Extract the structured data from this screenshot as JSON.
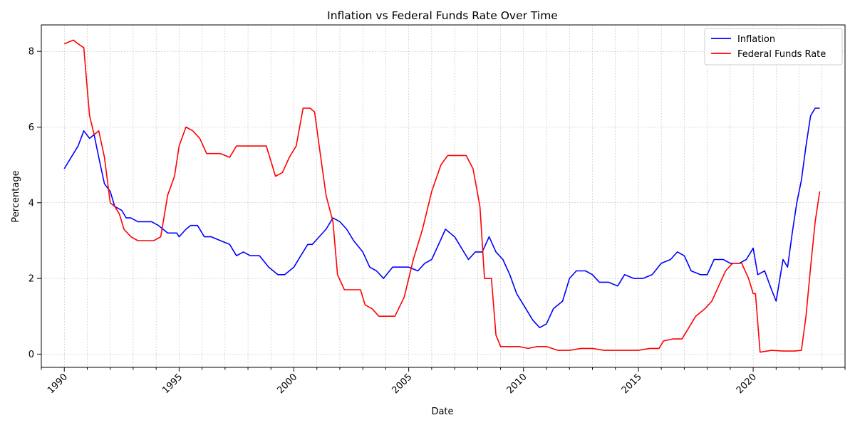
{
  "chart_data": {
    "type": "line",
    "title": "Inflation vs Federal Funds Rate Over Time",
    "xlabel": "Date",
    "ylabel": "Percentage",
    "xlim": [
      1989,
      2024
    ],
    "ylim": [
      -0.35,
      8.7
    ],
    "x_ticks": [
      1990,
      1995,
      2000,
      2005,
      2010,
      2015,
      2020
    ],
    "x_tick_labels": [
      "1990",
      "1995",
      "2000",
      "2005",
      "2010",
      "2015",
      "2020"
    ],
    "y_ticks": [
      0,
      2,
      4,
      6,
      8
    ],
    "y_tick_labels": [
      "0",
      "2",
      "4",
      "6",
      "8"
    ],
    "grid": true,
    "legend_position": "top-right",
    "series": [
      {
        "name": "Inflation",
        "color": "#0000ff",
        "x": [
          1990.0,
          1990.4,
          1990.6,
          1990.85,
          1991.1,
          1991.3,
          1991.5,
          1991.75,
          1992.0,
          1992.2,
          1992.5,
          1992.7,
          1992.9,
          1993.2,
          1993.5,
          1993.8,
          1994.1,
          1994.5,
          1994.9,
          1995.0,
          1995.3,
          1995.5,
          1995.8,
          1996.1,
          1996.4,
          1996.8,
          1997.2,
          1997.5,
          1997.8,
          1998.1,
          1998.5,
          1998.9,
          1999.3,
          1999.6,
          2000.0,
          2000.3,
          2000.6,
          2000.8,
          2001.1,
          2001.4,
          2001.7,
          2002.0,
          2002.3,
          2002.6,
          2003.0,
          2003.3,
          2003.6,
          2003.9,
          2004.3,
          2004.7,
          2005.0,
          2005.4,
          2005.7,
          2006.0,
          2006.3,
          2006.6,
          2007.0,
          2007.3,
          2007.6,
          2007.9,
          2008.2,
          2008.5,
          2008.8,
          2009.1,
          2009.4,
          2009.7,
          2010.0,
          2010.4,
          2010.7,
          2011.0,
          2011.3,
          2011.7,
          2012.0,
          2012.3,
          2012.7,
          2013.0,
          2013.3,
          2013.7,
          2014.1,
          2014.4,
          2014.8,
          2015.2,
          2015.6,
          2016.0,
          2016.4,
          2016.7,
          2017.0,
          2017.3,
          2017.7,
          2018.0,
          2018.3,
          2018.7,
          2019.0,
          2019.4,
          2019.7,
          2020.0,
          2020.2,
          2020.5,
          2020.8,
          2021.0,
          2021.3,
          2021.5,
          2021.7,
          2021.9,
          2022.1,
          2022.3,
          2022.5,
          2022.7,
          2022.9
        ],
        "values": [
          4.9,
          5.3,
          5.5,
          5.9,
          5.7,
          5.8,
          5.2,
          4.5,
          4.3,
          3.9,
          3.8,
          3.6,
          3.6,
          3.5,
          3.5,
          3.5,
          3.4,
          3.2,
          3.2,
          3.1,
          3.3,
          3.4,
          3.4,
          3.1,
          3.1,
          3.0,
          2.9,
          2.6,
          2.7,
          2.6,
          2.6,
          2.3,
          2.1,
          2.1,
          2.3,
          2.6,
          2.9,
          2.9,
          3.1,
          3.3,
          3.6,
          3.5,
          3.3,
          3.0,
          2.7,
          2.3,
          2.2,
          2.0,
          2.3,
          2.3,
          2.3,
          2.2,
          2.4,
          2.5,
          2.9,
          3.3,
          3.1,
          2.8,
          2.5,
          2.7,
          2.7,
          3.1,
          2.7,
          2.5,
          2.1,
          1.6,
          1.3,
          0.9,
          0.7,
          0.8,
          1.2,
          1.4,
          2.0,
          2.2,
          2.2,
          2.1,
          1.9,
          1.9,
          1.8,
          2.1,
          2.0,
          2.0,
          2.1,
          2.4,
          2.5,
          2.7,
          2.6,
          2.2,
          2.1,
          2.1,
          2.5,
          2.5,
          2.4,
          2.4,
          2.5,
          2.8,
          2.1,
          2.2,
          1.7,
          1.4,
          2.5,
          2.3,
          3.2,
          4.0,
          4.6,
          5.5,
          6.3,
          6.5,
          6.5
        ]
      },
      {
        "name": "Federal Funds Rate",
        "color": "#ff0000",
        "x": [
          1990.0,
          1990.4,
          1990.6,
          1990.85,
          1991.1,
          1991.3,
          1991.5,
          1991.75,
          1992.0,
          1992.2,
          1992.4,
          1992.6,
          1992.9,
          1993.2,
          1993.6,
          1993.9,
          1994.2,
          1994.5,
          1994.8,
          1995.0,
          1995.3,
          1995.6,
          1995.9,
          1996.2,
          1996.5,
          1996.8,
          1997.2,
          1997.5,
          1997.8,
          1998.1,
          1998.5,
          1998.8,
          1999.2,
          1999.5,
          1999.8,
          2000.1,
          2000.4,
          2000.7,
          2000.9,
          2001.1,
          2001.4,
          2001.7,
          2001.9,
          2002.2,
          2002.6,
          2002.9,
          2003.1,
          2003.4,
          2003.7,
          2004.0,
          2004.4,
          2004.8,
          2005.2,
          2005.6,
          2006.0,
          2006.4,
          2006.7,
          2007.0,
          2007.5,
          2007.8,
          2008.1,
          2008.3,
          2008.6,
          2008.8,
          2009.0,
          2009.4,
          2009.8,
          2010.2,
          2010.6,
          2011.0,
          2011.5,
          2012.0,
          2012.5,
          2013.0,
          2013.5,
          2014.0,
          2014.5,
          2015.0,
          2015.5,
          2015.9,
          2016.1,
          2016.5,
          2016.9,
          2017.2,
          2017.5,
          2017.9,
          2018.2,
          2018.5,
          2018.8,
          2019.1,
          2019.5,
          2019.8,
          2020.0,
          2020.1,
          2020.3,
          2020.8,
          2021.3,
          2021.8,
          2022.1,
          2022.3,
          2022.5,
          2022.7,
          2022.9
        ],
        "values": [
          8.2,
          8.3,
          8.2,
          8.1,
          6.3,
          5.8,
          5.9,
          5.2,
          4.0,
          3.9,
          3.7,
          3.3,
          3.1,
          3.0,
          3.0,
          3.0,
          3.1,
          4.2,
          4.7,
          5.5,
          6.0,
          5.9,
          5.7,
          5.3,
          5.3,
          5.3,
          5.2,
          5.5,
          5.5,
          5.5,
          5.5,
          5.5,
          4.7,
          4.8,
          5.2,
          5.5,
          6.5,
          6.5,
          6.4,
          5.5,
          4.2,
          3.5,
          2.1,
          1.7,
          1.7,
          1.7,
          1.3,
          1.2,
          1.0,
          1.0,
          1.0,
          1.5,
          2.5,
          3.3,
          4.3,
          5.0,
          5.25,
          5.25,
          5.25,
          4.9,
          3.9,
          2.0,
          2.0,
          0.5,
          0.2,
          0.2,
          0.2,
          0.15,
          0.2,
          0.2,
          0.1,
          0.1,
          0.15,
          0.15,
          0.1,
          0.1,
          0.1,
          0.1,
          0.15,
          0.15,
          0.35,
          0.4,
          0.4,
          0.7,
          1.0,
          1.2,
          1.4,
          1.8,
          2.2,
          2.4,
          2.4,
          2.0,
          1.6,
          1.6,
          0.05,
          0.1,
          0.08,
          0.08,
          0.1,
          1.0,
          2.3,
          3.5,
          4.3
        ]
      }
    ]
  }
}
